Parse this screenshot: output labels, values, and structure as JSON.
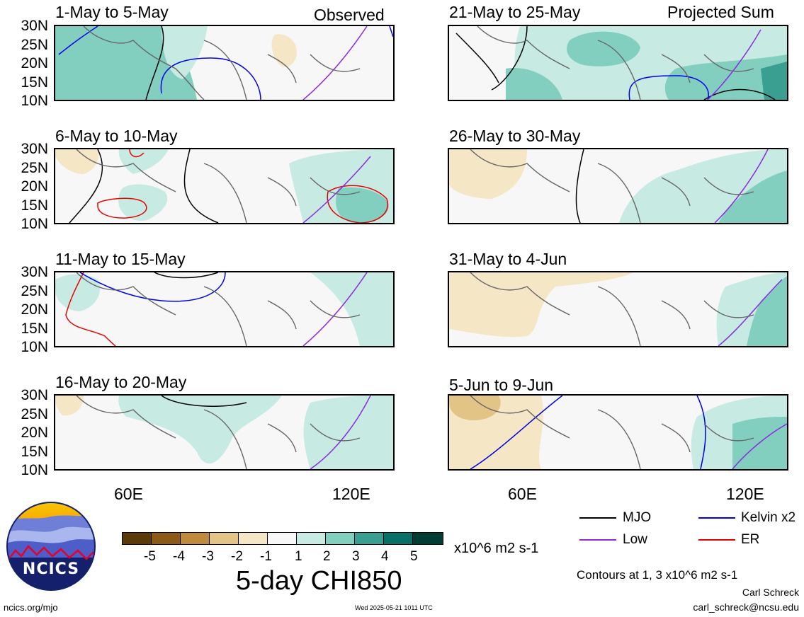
{
  "header": {
    "left_label": "Observed",
    "right_label": "Projected Sum"
  },
  "panels": [
    {
      "title": "1-May to 5-May"
    },
    {
      "title": "6-May to 10-May"
    },
    {
      "title": "11-May to 15-May"
    },
    {
      "title": "16-May to 20-May"
    },
    {
      "title": "21-May to 25-May"
    },
    {
      "title": "26-May to 30-May"
    },
    {
      "title": "31-May to 4-Jun"
    },
    {
      "title": "5-Jun to 9-Jun"
    }
  ],
  "axes": {
    "lat_labels": [
      "30N",
      "25N",
      "20N",
      "15N",
      "10N"
    ],
    "lon_labels": [
      "60E",
      "120E"
    ]
  },
  "colorbar": {
    "labels": [
      "-5",
      "-4",
      "-3",
      "-2",
      "-1",
      "1",
      "2",
      "3",
      "4",
      "5"
    ],
    "units": "x10^6 m2 s-1",
    "colors": [
      "#5c3a08",
      "#8c5a16",
      "#c08a3e",
      "#e3c487",
      "#f5e7c6",
      "#f7f7f7",
      "#c7ebe3",
      "#82cfc0",
      "#3a9e91",
      "#0a6f66",
      "#003d35"
    ]
  },
  "title": "5-day CHI850",
  "legend": {
    "mjo": {
      "label": "MJO",
      "color": "#000000"
    },
    "kelvin": {
      "label": "Kelvin x2",
      "color": "#0000e6"
    },
    "low": {
      "label": "Low",
      "color": "#8a2be2"
    },
    "er": {
      "label": "ER",
      "color": "#e60000"
    }
  },
  "contour_note": "Contours at 1, 3 x10^6 m2 s-1",
  "author": "Carl Schreck",
  "email": "carl_schreck@ncsu.edu",
  "url": "ncics.org/mjo",
  "timestamp": "Wed 2025-05-21 1011 UTC",
  "logo_text": "NCICS"
}
